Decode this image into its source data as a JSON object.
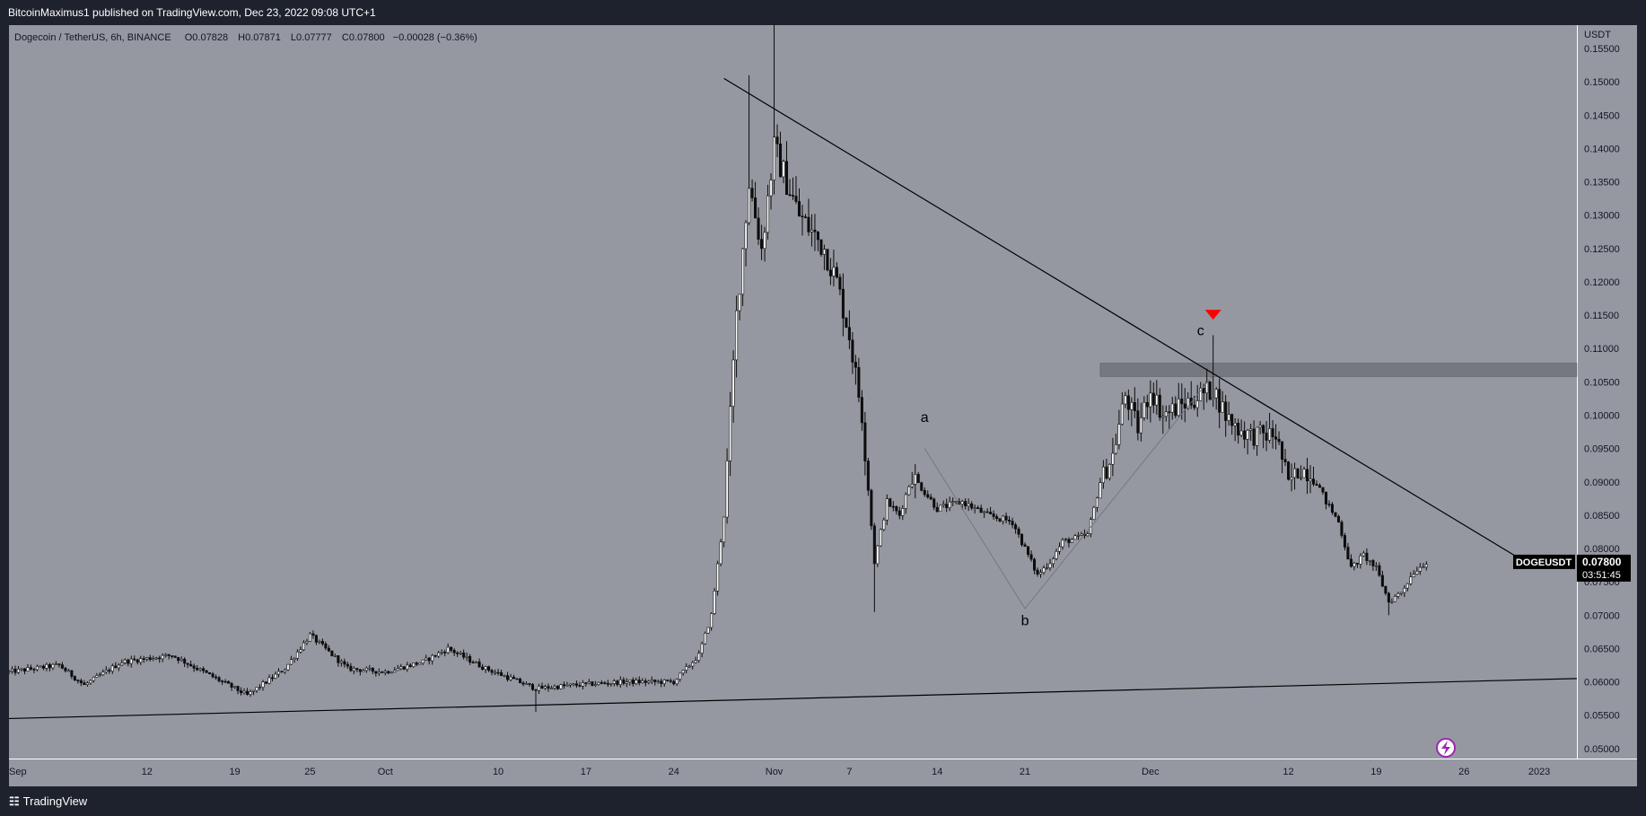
{
  "header": {
    "published_line": "BitcoinMaximus1 published on TradingView.com, Dec 23, 2022 09:08 UTC+1"
  },
  "legend": {
    "symbol_line": "Dogecoin / TetherUS, 6h, BINANCE",
    "open_key": "O",
    "open": "0.07828",
    "high_key": "H",
    "high": "0.07871",
    "low_key": "L",
    "low": "0.07777",
    "close_key": "C",
    "close": "0.07800",
    "change": "−0.00028 (−0.36%)"
  },
  "price_tag": {
    "symbol": "DOGEUSDT",
    "price": "0.07800",
    "countdown": "03:51:45"
  },
  "footer": {
    "brand": "TradingView",
    "logo_icon": "tradingview-logo-icon"
  },
  "colors": {
    "plot_bg": "#9598a1",
    "candle": "#0d0d0d",
    "trendline": "#000000",
    "zone": "#6b6e75",
    "signal_marker": "#ff0000",
    "price_tag_bg": "#000000",
    "axis_bg": "#ffffff"
  },
  "chart_data": {
    "type": "candlestick",
    "title": "Dogecoin / TetherUS, 6h, BINANCE",
    "y_unit": "USDT",
    "ylim": [
      0.0485,
      0.1585
    ],
    "x_range": [
      "2022-09-01",
      "2023-01-04"
    ],
    "y_ticks": [
      "0.05000",
      "0.05500",
      "0.06000",
      "0.06500",
      "0.07000",
      "0.07500",
      "0.08000",
      "0.08500",
      "0.09000",
      "0.09500",
      "0.10000",
      "0.10500",
      "0.11000",
      "0.11500",
      "0.12000",
      "0.12500",
      "0.13000",
      "0.13500",
      "0.14000",
      "0.14500",
      "0.15000",
      "0.15500"
    ],
    "x_ticks": [
      {
        "label": "Sep",
        "date": "2022-09-01"
      },
      {
        "label": "12",
        "date": "2022-09-12"
      },
      {
        "label": "19",
        "date": "2022-09-19"
      },
      {
        "label": "25",
        "date": "2022-09-25"
      },
      {
        "label": "Oct",
        "date": "2022-10-01"
      },
      {
        "label": "10",
        "date": "2022-10-10"
      },
      {
        "label": "17",
        "date": "2022-10-17"
      },
      {
        "label": "24",
        "date": "2022-10-24"
      },
      {
        "label": "Nov",
        "date": "2022-11-01"
      },
      {
        "label": "7",
        "date": "2022-11-07"
      },
      {
        "label": "14",
        "date": "2022-11-14"
      },
      {
        "label": "21",
        "date": "2022-11-21"
      },
      {
        "label": "Dec",
        "date": "2022-12-01"
      },
      {
        "label": "12",
        "date": "2022-12-12"
      },
      {
        "label": "19",
        "date": "2022-12-19"
      },
      {
        "label": "26",
        "date": "2022-12-26"
      },
      {
        "label": "2023",
        "date": "2023-01-01"
      }
    ],
    "price_path": [
      {
        "date": "2022-09-01",
        "price": 0.0615
      },
      {
        "date": "2022-09-05",
        "price": 0.0625
      },
      {
        "date": "2022-09-07",
        "price": 0.0595
      },
      {
        "date": "2022-09-10",
        "price": 0.063
      },
      {
        "date": "2022-09-14",
        "price": 0.064
      },
      {
        "date": "2022-09-17",
        "price": 0.061
      },
      {
        "date": "2022-09-20",
        "price": 0.058
      },
      {
        "date": "2022-09-23",
        "price": 0.062
      },
      {
        "date": "2022-09-25",
        "price": 0.067
      },
      {
        "date": "2022-09-28",
        "price": 0.062
      },
      {
        "date": "2022-10-01",
        "price": 0.0615
      },
      {
        "date": "2022-10-04",
        "price": 0.063
      },
      {
        "date": "2022-10-06",
        "price": 0.065
      },
      {
        "date": "2022-10-09",
        "price": 0.062
      },
      {
        "date": "2022-10-13",
        "price": 0.059
      },
      {
        "date": "2022-10-16",
        "price": 0.0595
      },
      {
        "date": "2022-10-20",
        "price": 0.06
      },
      {
        "date": "2022-10-24",
        "price": 0.06
      },
      {
        "date": "2022-10-26",
        "price": 0.064
      },
      {
        "date": "2022-10-27",
        "price": 0.07
      },
      {
        "date": "2022-10-28",
        "price": 0.085
      },
      {
        "date": "2022-10-29",
        "price": 0.115
      },
      {
        "date": "2022-10-30",
        "price": 0.135
      },
      {
        "date": "2022-10-31",
        "price": 0.125
      },
      {
        "date": "2022-11-01",
        "price": 0.14
      },
      {
        "date": "2022-11-02",
        "price": 0.135
      },
      {
        "date": "2022-11-03",
        "price": 0.13
      },
      {
        "date": "2022-11-05",
        "price": 0.125
      },
      {
        "date": "2022-11-06",
        "price": 0.12
      },
      {
        "date": "2022-11-07",
        "price": 0.112
      },
      {
        "date": "2022-11-08",
        "price": 0.1
      },
      {
        "date": "2022-11-09",
        "price": 0.078
      },
      {
        "date": "2022-11-10",
        "price": 0.087
      },
      {
        "date": "2022-11-11",
        "price": 0.085
      },
      {
        "date": "2022-11-12",
        "price": 0.091
      },
      {
        "date": "2022-11-14",
        "price": 0.086
      },
      {
        "date": "2022-11-16",
        "price": 0.087
      },
      {
        "date": "2022-11-18",
        "price": 0.085
      },
      {
        "date": "2022-11-20",
        "price": 0.084
      },
      {
        "date": "2022-11-21",
        "price": 0.08
      },
      {
        "date": "2022-11-22",
        "price": 0.076
      },
      {
        "date": "2022-11-23",
        "price": 0.078
      },
      {
        "date": "2022-11-24",
        "price": 0.081
      },
      {
        "date": "2022-11-26",
        "price": 0.082
      },
      {
        "date": "2022-11-27",
        "price": 0.09
      },
      {
        "date": "2022-11-28",
        "price": 0.094
      },
      {
        "date": "2022-11-29",
        "price": 0.103
      },
      {
        "date": "2022-11-30",
        "price": 0.098
      },
      {
        "date": "2022-12-01",
        "price": 0.104
      },
      {
        "date": "2022-12-02",
        "price": 0.1
      },
      {
        "date": "2022-12-03",
        "price": 0.101
      },
      {
        "date": "2022-12-05",
        "price": 0.103
      },
      {
        "date": "2022-12-06",
        "price": 0.104
      },
      {
        "date": "2022-12-07",
        "price": 0.1
      },
      {
        "date": "2022-12-08",
        "price": 0.098
      },
      {
        "date": "2022-12-09",
        "price": 0.097
      },
      {
        "date": "2022-12-11",
        "price": 0.097
      },
      {
        "date": "2022-12-12",
        "price": 0.09
      },
      {
        "date": "2022-12-13",
        "price": 0.092
      },
      {
        "date": "2022-12-14",
        "price": 0.091
      },
      {
        "date": "2022-12-15",
        "price": 0.087
      },
      {
        "date": "2022-12-16",
        "price": 0.084
      },
      {
        "date": "2022-12-17",
        "price": 0.077
      },
      {
        "date": "2022-12-18",
        "price": 0.079
      },
      {
        "date": "2022-12-19",
        "price": 0.077
      },
      {
        "date": "2022-12-20",
        "price": 0.072
      },
      {
        "date": "2022-12-21",
        "price": 0.0735
      },
      {
        "date": "2022-12-22",
        "price": 0.0765
      },
      {
        "date": "2022-12-23",
        "price": 0.078
      }
    ],
    "spike_wicks": [
      {
        "date": "2022-10-30",
        "high": 0.151
      },
      {
        "date": "2022-11-01",
        "high": 0.1585
      },
      {
        "date": "2022-12-06",
        "high": 0.112
      },
      {
        "date": "2022-11-09",
        "low": 0.0705
      },
      {
        "date": "2022-10-13",
        "low": 0.0555
      },
      {
        "date": "2022-12-20",
        "low": 0.07
      }
    ],
    "trendlines": [
      {
        "name": "descending-resistance",
        "from": {
          "date": "2022-10-28",
          "price": 0.1505
        },
        "to": {
          "date": "2022-12-30",
          "price": 0.079
        }
      },
      {
        "name": "ascending-support",
        "from": {
          "date": "2022-09-01",
          "price": 0.0545
        },
        "to": {
          "date": "2023-01-04",
          "price": 0.0605
        }
      }
    ],
    "zone": {
      "from_date": "2022-11-27",
      "to_date": "2023-01-04",
      "price_low": 0.1058,
      "price_high": 0.1078
    },
    "wave_labels": [
      {
        "text": "a",
        "date": "2022-11-13",
        "price": 0.099
      },
      {
        "text": "b",
        "date": "2022-11-21",
        "price": 0.0685
      },
      {
        "text": "c",
        "date": "2022-12-05",
        "price": 0.112
      }
    ],
    "wave_path": [
      {
        "date": "2022-11-13",
        "price": 0.095
      },
      {
        "date": "2022-11-21",
        "price": 0.071
      },
      {
        "date": "2022-12-06",
        "price": 0.106
      }
    ],
    "signal_marker": {
      "date": "2022-12-06",
      "price": 0.115,
      "shape": "down-triangle"
    },
    "last_price": 0.078,
    "grid": false
  }
}
